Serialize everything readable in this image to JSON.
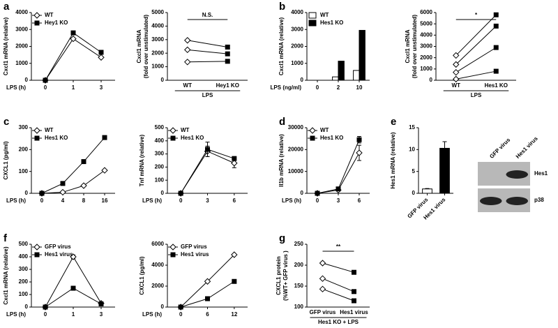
{
  "chart_data": [
    {
      "type": "line",
      "panel": "a",
      "ylabel": "Cxcl1 mRNA (relative)",
      "xlabel": "LPS (h)",
      "categories": [
        "0",
        "1",
        "3"
      ],
      "ylim": [
        0,
        4000
      ],
      "yticks": [
        0,
        1000,
        2000,
        3000,
        4000
      ],
      "series": [
        {
          "name": "WT",
          "color": "#000000",
          "fill": "#ffffff",
          "marker": "diamond",
          "values": [
            0,
            2450,
            1350
          ]
        },
        {
          "name": "Hey1 KO",
          "color": "#000000",
          "fill": "#000000",
          "marker": "square",
          "values": [
            0,
            2800,
            1650
          ]
        }
      ]
    },
    {
      "type": "paired",
      "ylabel": [
        "Cxcl1 mRNA",
        "(fold over unstimulated)"
      ],
      "xlabel": "LPS",
      "annotation": "N.S.",
      "categories": [
        "WT",
        "Hey1 KO"
      ],
      "markers": [
        "diamond",
        "square"
      ],
      "fills": [
        "#ffffff",
        "#000000"
      ],
      "ylim": [
        0,
        5000
      ],
      "yticks": [
        0,
        1000,
        2000,
        3000,
        4000,
        5000
      ],
      "values": [
        [
          2950,
          2450
        ],
        [
          2250,
          1950
        ],
        [
          1350,
          1400
        ]
      ]
    },
    {
      "type": "bar",
      "panel": "b",
      "ylabel": "Cxcl1 mRNA (relative)",
      "xlabel": "LPS (ng/ml)",
      "categories": [
        "0",
        "2",
        "10"
      ],
      "ylim": [
        0,
        4000
      ],
      "yticks": [
        0,
        1000,
        2000,
        3000,
        4000
      ],
      "series": [
        {
          "name": "WT",
          "color": "#000000",
          "fill": "#ffffff",
          "values": [
            0,
            200,
            580
          ]
        },
        {
          "name": "Hes1 KO",
          "color": "#000000",
          "fill": "#000000",
          "values": [
            0,
            1130,
            2950
          ]
        }
      ]
    },
    {
      "type": "paired",
      "ylabel": [
        "Cxcl1 mRNA",
        "(fold over unstimulated)"
      ],
      "xlabel": "LPS",
      "annotation": "*",
      "categories": [
        "WT",
        "Hes1 KO"
      ],
      "markers": [
        "diamond",
        "square"
      ],
      "fills": [
        "#ffffff",
        "#000000"
      ],
      "ylim": [
        0,
        6000
      ],
      "yticks": [
        0,
        1000,
        2000,
        3000,
        4000,
        5000,
        6000
      ],
      "values": [
        [
          2200,
          5800
        ],
        [
          1400,
          4800
        ],
        [
          700,
          2900
        ],
        [
          100,
          800
        ]
      ]
    },
    {
      "type": "line",
      "panel": "c",
      "ylabel": "CXCL1 (pg/ml)",
      "xlabel": "LPS (h)",
      "categories": [
        "0",
        "4",
        "8",
        "16"
      ],
      "ylim": [
        0,
        300
      ],
      "yticks": [
        0,
        100,
        200,
        300
      ],
      "series": [
        {
          "name": "WT",
          "color": "#000000",
          "fill": "#ffffff",
          "marker": "diamond",
          "values": [
            0,
            5,
            35,
            105
          ]
        },
        {
          "name": "Hes1 KO",
          "color": "#000000",
          "fill": "#000000",
          "marker": "square",
          "values": [
            0,
            45,
            145,
            255
          ]
        }
      ]
    },
    {
      "type": "line",
      "ylabel": "Tnf mRNA (relative)",
      "xlabel": "LPS (h)",
      "categories": [
        "0",
        "3",
        "6"
      ],
      "ylim": [
        0,
        500
      ],
      "yticks": [
        0,
        100,
        200,
        300,
        400,
        500
      ],
      "series": [
        {
          "name": "WT",
          "color": "#000000",
          "fill": "#ffffff",
          "marker": "diamond",
          "values": [
            0,
            320,
            230
          ],
          "errors": [
            0,
            40,
            35
          ]
        },
        {
          "name": "Hes1 KO",
          "color": "#000000",
          "fill": "#000000",
          "marker": "square",
          "values": [
            0,
            335,
            265
          ],
          "errors": [
            0,
            55,
            15
          ]
        }
      ]
    },
    {
      "type": "line",
      "panel": "d",
      "ylabel": "Il1b mRNA (relative)",
      "xlabel": "LPS (h)",
      "categories": [
        "0",
        "3",
        "6"
      ],
      "ylim": [
        0,
        30000
      ],
      "yticks": [
        0,
        10000,
        20000,
        30000
      ],
      "series": [
        {
          "name": "WT",
          "color": "#000000",
          "fill": "#ffffff",
          "marker": "diamond",
          "values": [
            0,
            1500,
            18500
          ],
          "errors": [
            0,
            500,
            3500
          ]
        },
        {
          "name": "Hes1 KO",
          "color": "#000000",
          "fill": "#000000",
          "marker": "square",
          "values": [
            0,
            2000,
            24500
          ],
          "errors": [
            0,
            500,
            1500
          ]
        }
      ]
    },
    {
      "type": "bar",
      "panel": "e",
      "ylabel": "Hes1 mRNA (relative)",
      "categories": [
        "GFP virus",
        "Hes1 virus"
      ],
      "ylim": [
        0,
        15
      ],
      "yticks": [
        0,
        5,
        10,
        15
      ],
      "series": [
        {
          "color": "#000000",
          "fills": [
            "#ffffff",
            "#000000"
          ],
          "values": [
            1,
            10.3
          ],
          "errors": [
            0.1,
            1.5
          ]
        }
      ]
    },
    {
      "type": "blot",
      "columns": [
        "GFP virus",
        "Hes1 virus"
      ],
      "rows": [
        "Hes1",
        "p38"
      ]
    },
    {
      "type": "line",
      "panel": "f",
      "ylabel": "Cxcl1 mRNA (relative)",
      "xlabel": "LPS (h)",
      "categories": [
        "0",
        "1",
        "3"
      ],
      "ylim": [
        0,
        500
      ],
      "yticks": [
        0,
        100,
        200,
        300,
        400,
        500
      ],
      "series": [
        {
          "name": "GFP virus",
          "color": "#000000",
          "fill": "#ffffff",
          "marker": "diamond",
          "values": [
            0,
            400,
            30
          ],
          "errors": [
            0,
            15,
            5
          ]
        },
        {
          "name": "Hes1 virus",
          "color": "#000000",
          "fill": "#000000",
          "marker": "square",
          "values": [
            0,
            150,
            25
          ]
        }
      ]
    },
    {
      "type": "line",
      "ylabel": "CXCL1 (pg/ml)",
      "xlabel": "LPS (h)",
      "categories": [
        "0",
        "6",
        "12"
      ],
      "ylim": [
        0,
        6000
      ],
      "yticks": [
        0,
        2000,
        4000,
        6000
      ],
      "series": [
        {
          "name": "GFP virus",
          "color": "#000000",
          "fill": "#ffffff",
          "marker": "diamond",
          "values": [
            0,
            2450,
            5000
          ]
        },
        {
          "name": "Hes1 virus",
          "color": "#000000",
          "fill": "#000000",
          "marker": "square",
          "values": [
            0,
            800,
            2450
          ]
        }
      ]
    },
    {
      "type": "paired",
      "panel": "g",
      "ylabel": [
        "CXCL1 protein",
        "(%WT+ GFP virus )"
      ],
      "xlabel": "Hes1 KO + LPS",
      "annotation": "**",
      "categories": [
        "GFP virus",
        "Hes1 virus"
      ],
      "markers": [
        "diamond",
        "square"
      ],
      "fills": [
        "#ffffff",
        "#000000"
      ],
      "ylim": [
        100,
        250
      ],
      "yticks": [
        100,
        150,
        200,
        250
      ],
      "values": [
        [
          205,
          183
        ],
        [
          168,
          137
        ],
        [
          143,
          115
        ]
      ]
    }
  ]
}
